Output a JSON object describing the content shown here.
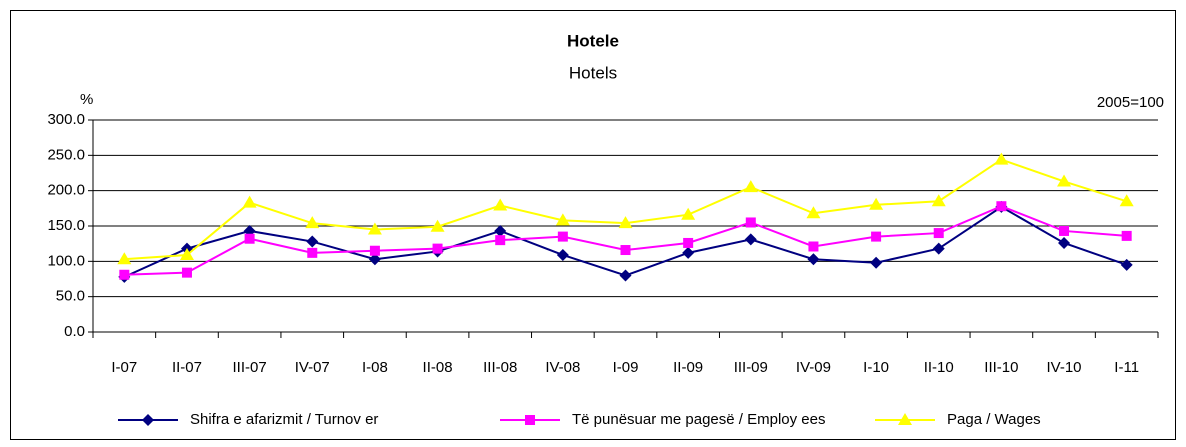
{
  "chart_data": {
    "type": "line",
    "title": "Hotele",
    "subtitle": "Hotels",
    "y_unit_label": "%",
    "base_note": "2005=100",
    "categories": [
      "I-07",
      "II-07",
      "III-07",
      "IV-07",
      "I-08",
      "II-08",
      "III-08",
      "IV-08",
      "I-09",
      "II-09",
      "III-09",
      "IV-09",
      "I-10",
      "II-10",
      "III-10",
      "IV-10",
      "I-11"
    ],
    "series": [
      {
        "name": "Shifra e afarizmit / Turnov er",
        "color": "#000080",
        "marker": "diamond",
        "values": [
          78,
          118,
          143,
          128,
          103,
          114,
          143,
          109,
          80,
          112,
          131,
          103,
          98,
          118,
          177,
          126,
          95
        ]
      },
      {
        "name": "Të punësuar me pagesë / Employ ees",
        "color": "#ff00ff",
        "marker": "square",
        "values": [
          81,
          84,
          132,
          112,
          115,
          118,
          130,
          135,
          116,
          126,
          155,
          121,
          135,
          140,
          178,
          143,
          136
        ]
      },
      {
        "name": "Paga / Wages",
        "color": "#ffff00",
        "marker": "triangle",
        "values": [
          103,
          109,
          183,
          154,
          145,
          149,
          179,
          158,
          154,
          166,
          205,
          168,
          180,
          185,
          244,
          213,
          185
        ]
      }
    ],
    "ylim": [
      0,
      300
    ],
    "yticks": [
      {
        "value": 0,
        "label": "0.0"
      },
      {
        "value": 50,
        "label": "50.0"
      },
      {
        "value": 100,
        "label": "100.0"
      },
      {
        "value": 150,
        "label": "150.0"
      },
      {
        "value": 200,
        "label": "200.0"
      },
      {
        "value": 250,
        "label": "250.0"
      },
      {
        "value": 300,
        "label": "300.0"
      }
    ],
    "grid": true,
    "legend": "bottom"
  }
}
